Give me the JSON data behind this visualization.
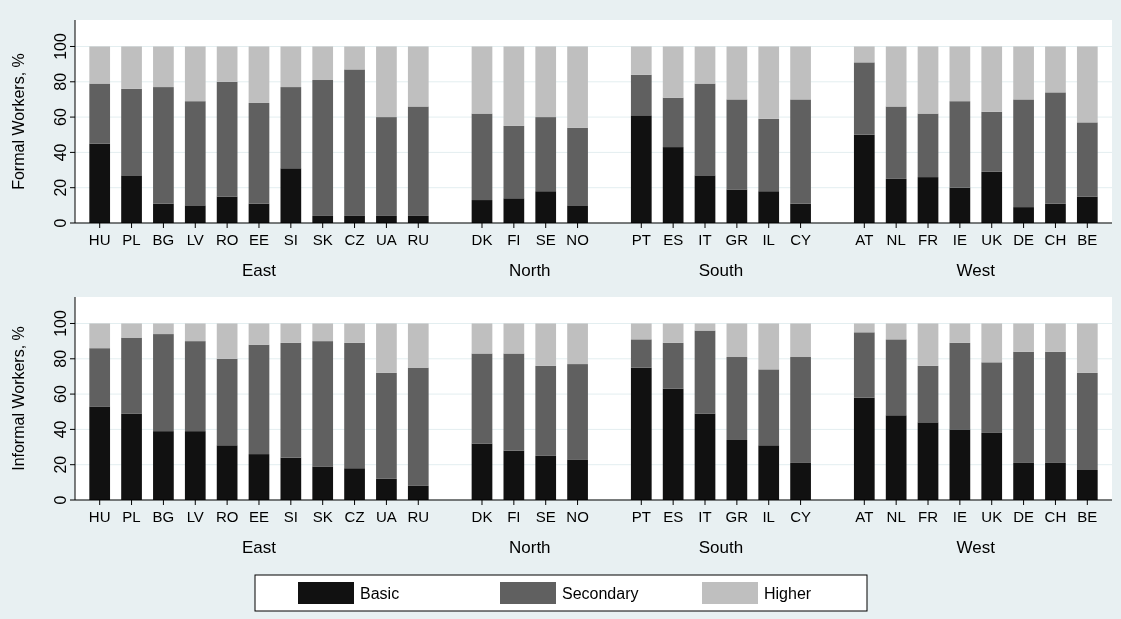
{
  "chart_data": [
    {
      "type": "bar",
      "stacked": true,
      "ylabel": "Formal Workers, %",
      "categories": [
        "HU",
        "PL",
        "BG",
        "LV",
        "RO",
        "EE",
        "SI",
        "SK",
        "CZ",
        "UA",
        "RU",
        null,
        "DK",
        "FI",
        "SE",
        "NO",
        null,
        "PT",
        "ES",
        "IT",
        "GR",
        "IL",
        "CY",
        null,
        "AT",
        "NL",
        "FR",
        "IE",
        "UK",
        "DE",
        "CH",
        "BE"
      ],
      "annotations": [
        "East",
        "North",
        "South",
        "West"
      ],
      "series": [
        {
          "name": "Basic",
          "color": "#111111",
          "values": [
            45,
            27,
            11,
            10,
            15,
            11,
            31,
            4,
            4,
            4,
            4,
            null,
            13,
            14,
            18,
            10,
            null,
            61,
            43,
            27,
            19,
            18,
            11,
            null,
            50,
            25,
            26,
            20,
            29,
            9,
            11,
            15
          ]
        },
        {
          "name": "Secondary",
          "color": "#606060",
          "values": [
            34,
            49,
            66,
            59,
            65,
            57,
            46,
            77,
            83,
            56,
            62,
            null,
            49,
            41,
            42,
            44,
            null,
            23,
            28,
            52,
            51,
            41,
            59,
            null,
            41,
            41,
            36,
            49,
            34,
            61,
            63,
            42
          ]
        },
        {
          "name": "Higher",
          "color": "#bfbfbf",
          "values": [
            21,
            24,
            23,
            31,
            20,
            32,
            23,
            19,
            13,
            40,
            34,
            null,
            38,
            45,
            40,
            46,
            null,
            16,
            29,
            21,
            30,
            41,
            30,
            null,
            9,
            34,
            38,
            31,
            37,
            30,
            26,
            43
          ]
        }
      ],
      "ylim": [
        0,
        115
      ],
      "yticks": [
        0,
        20,
        40,
        60,
        80,
        100
      ],
      "grid": "y",
      "legend": "bottom"
    },
    {
      "type": "bar",
      "stacked": true,
      "ylabel": "Informal Workers, %",
      "categories": [
        "HU",
        "PL",
        "BG",
        "LV",
        "RO",
        "EE",
        "SI",
        "SK",
        "CZ",
        "UA",
        "RU",
        null,
        "DK",
        "FI",
        "SE",
        "NO",
        null,
        "PT",
        "ES",
        "IT",
        "GR",
        "IL",
        "CY",
        null,
        "AT",
        "NL",
        "FR",
        "IE",
        "UK",
        "DE",
        "CH",
        "BE"
      ],
      "annotations": [
        "East",
        "North",
        "South",
        "West"
      ],
      "series": [
        {
          "name": "Basic",
          "color": "#111111",
          "values": [
            53,
            49,
            39,
            39,
            31,
            26,
            24,
            19,
            18,
            12,
            8,
            null,
            32,
            28,
            25,
            23,
            null,
            75,
            63,
            49,
            34,
            31,
            21,
            null,
            58,
            48,
            44,
            40,
            38,
            21,
            21,
            17
          ]
        },
        {
          "name": "Secondary",
          "color": "#606060",
          "values": [
            33,
            43,
            55,
            51,
            49,
            62,
            65,
            71,
            71,
            60,
            67,
            null,
            51,
            55,
            51,
            54,
            null,
            16,
            26,
            47,
            47,
            43,
            60,
            null,
            37,
            43,
            32,
            49,
            40,
            63,
            63,
            55
          ]
        },
        {
          "name": "Higher",
          "color": "#bfbfbf",
          "values": [
            14,
            8,
            6,
            10,
            20,
            12,
            11,
            10,
            11,
            28,
            25,
            null,
            17,
            17,
            24,
            23,
            null,
            9,
            11,
            4,
            19,
            26,
            19,
            null,
            5,
            9,
            24,
            11,
            22,
            16,
            16,
            28
          ]
        }
      ],
      "ylim": [
        0,
        115
      ],
      "yticks": [
        0,
        20,
        40,
        60,
        80,
        100
      ],
      "grid": "y",
      "legend": "bottom"
    }
  ]
}
